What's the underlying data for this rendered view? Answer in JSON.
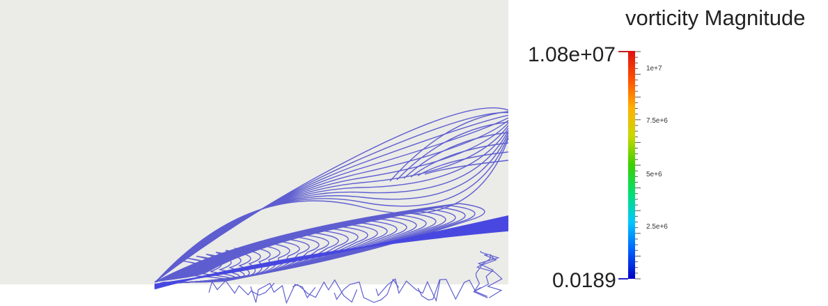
{
  "colorbar": {
    "title": "vorticity Magnitude",
    "max_label": "1.08e+07",
    "min_label": "0.0189",
    "tick_labels": [
      "1e+7",
      "7.5e+6",
      "5e+6",
      "2.5e+6"
    ],
    "colors": [
      "#0000c8",
      "#0060ff",
      "#00c8ff",
      "#00e070",
      "#3cd000",
      "#c8d800",
      "#ffb000",
      "#ff5000",
      "#e01010"
    ]
  },
  "plot": {
    "background_color": "#ebebe8",
    "contour_color": "#5e5ed0",
    "dense_band_color": "#4848e0"
  }
}
